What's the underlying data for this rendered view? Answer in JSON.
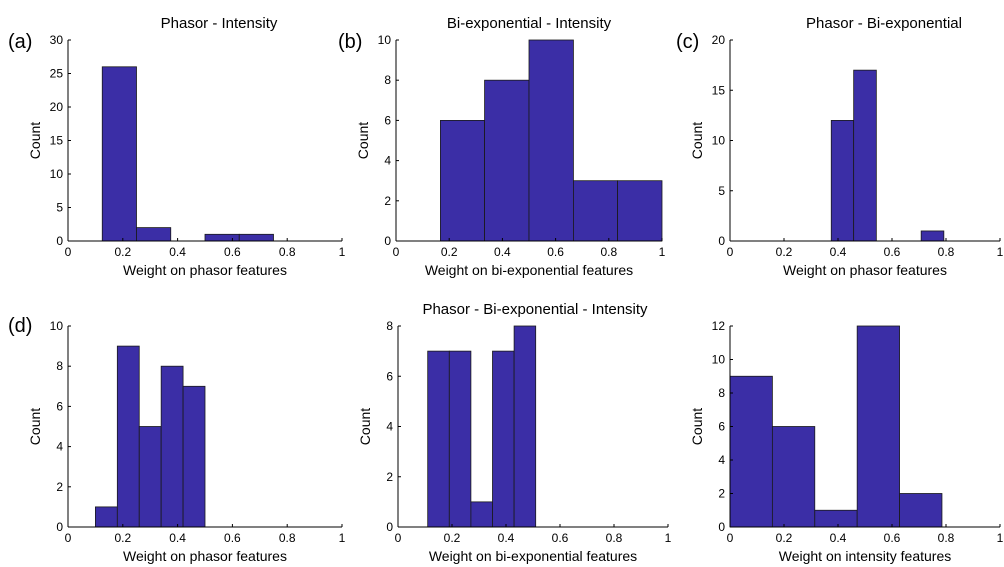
{
  "figure": {
    "row_titles": {
      "top_middle": "Bi-exponential - Intensity",
      "bottom_middle": "Phasor - Bi-exponential - Intensity"
    }
  },
  "chart_data": [
    {
      "id": "a",
      "type": "bar",
      "panel_tag": "(a)",
      "title": "Phasor - Intensity",
      "xlabel": "Weight on phasor features",
      "ylabel": "Count",
      "xlim": [
        0,
        1
      ],
      "ylim": [
        0,
        30
      ],
      "xticks": [
        0,
        0.2,
        0.4,
        0.6,
        0.8,
        1
      ],
      "yticks": [
        0,
        5,
        10,
        15,
        20,
        25,
        30
      ],
      "bars": [
        {
          "x0": 0.125,
          "x1": 0.25,
          "count": 26
        },
        {
          "x0": 0.25,
          "x1": 0.375,
          "count": 2
        },
        {
          "x0": 0.5,
          "x1": 0.625,
          "count": 1
        },
        {
          "x0": 0.625,
          "x1": 0.75,
          "count": 1
        }
      ]
    },
    {
      "id": "b",
      "type": "bar",
      "panel_tag": "(b)",
      "title": "Bi-exponential - Intensity",
      "xlabel": "Weight on bi-exponential features",
      "ylabel": "Count",
      "xlim": [
        0,
        1
      ],
      "ylim": [
        0,
        10
      ],
      "xticks": [
        0,
        0.2,
        0.4,
        0.6,
        0.8,
        1
      ],
      "yticks": [
        0,
        2,
        4,
        6,
        8,
        10
      ],
      "bars": [
        {
          "x0": 0.167,
          "x1": 0.333,
          "count": 6
        },
        {
          "x0": 0.333,
          "x1": 0.5,
          "count": 8
        },
        {
          "x0": 0.5,
          "x1": 0.667,
          "count": 10
        },
        {
          "x0": 0.667,
          "x1": 0.833,
          "count": 3
        },
        {
          "x0": 0.833,
          "x1": 1.0,
          "count": 3
        }
      ]
    },
    {
      "id": "c",
      "type": "bar",
      "panel_tag": "(c)",
      "title": "Phasor - Bi-exponential",
      "xlabel": "Weight on phasor features",
      "ylabel": "Count",
      "xlim": [
        0,
        1
      ],
      "ylim": [
        0,
        20
      ],
      "xticks": [
        0,
        0.2,
        0.4,
        0.6,
        0.8,
        1
      ],
      "yticks": [
        0,
        5,
        10,
        15,
        20
      ],
      "bars": [
        {
          "x0": 0.375,
          "x1": 0.458,
          "count": 12
        },
        {
          "x0": 0.458,
          "x1": 0.542,
          "count": 17
        },
        {
          "x0": 0.708,
          "x1": 0.792,
          "count": 1
        }
      ]
    },
    {
      "id": "d",
      "type": "bar",
      "panel_tag": "(d)",
      "title": "",
      "xlabel": "Weight on phasor features",
      "ylabel": "Count",
      "xlim": [
        0,
        1
      ],
      "ylim": [
        0,
        10
      ],
      "xticks": [
        0,
        0.2,
        0.4,
        0.6,
        0.8,
        1
      ],
      "yticks": [
        0,
        2,
        4,
        6,
        8,
        10
      ],
      "bars": [
        {
          "x0": 0.1,
          "x1": 0.18,
          "count": 1
        },
        {
          "x0": 0.18,
          "x1": 0.26,
          "count": 9
        },
        {
          "x0": 0.26,
          "x1": 0.34,
          "count": 5
        },
        {
          "x0": 0.34,
          "x1": 0.42,
          "count": 8
        },
        {
          "x0": 0.42,
          "x1": 0.5,
          "count": 7
        }
      ]
    },
    {
      "id": "e",
      "type": "bar",
      "panel_tag": "",
      "title": "Phasor - Bi-exponential - Intensity",
      "xlabel": "Weight on bi-exponential features",
      "ylabel": "Count",
      "xlim": [
        0,
        1
      ],
      "ylim": [
        0,
        8
      ],
      "xticks": [
        0,
        0.2,
        0.4,
        0.6,
        0.8,
        1
      ],
      "yticks": [
        0,
        2,
        4,
        6,
        8
      ],
      "bars": [
        {
          "x0": 0.11,
          "x1": 0.19,
          "count": 7
        },
        {
          "x0": 0.19,
          "x1": 0.27,
          "count": 7
        },
        {
          "x0": 0.27,
          "x1": 0.35,
          "count": 1
        },
        {
          "x0": 0.35,
          "x1": 0.43,
          "count": 7
        },
        {
          "x0": 0.43,
          "x1": 0.51,
          "count": 8
        }
      ]
    },
    {
      "id": "f",
      "type": "bar",
      "panel_tag": "",
      "title": "",
      "xlabel": "Weight on intensity features",
      "ylabel": "Count",
      "xlim": [
        0,
        1
      ],
      "ylim": [
        0,
        12
      ],
      "xticks": [
        0,
        0.2,
        0.4,
        0.6,
        0.8,
        1
      ],
      "yticks": [
        0,
        2,
        4,
        6,
        8,
        10,
        12
      ],
      "bars": [
        {
          "x0": 0.0,
          "x1": 0.157,
          "count": 9
        },
        {
          "x0": 0.157,
          "x1": 0.314,
          "count": 6
        },
        {
          "x0": 0.314,
          "x1": 0.471,
          "count": 1
        },
        {
          "x0": 0.471,
          "x1": 0.628,
          "count": 12
        },
        {
          "x0": 0.628,
          "x1": 0.785,
          "count": 2
        }
      ]
    }
  ]
}
